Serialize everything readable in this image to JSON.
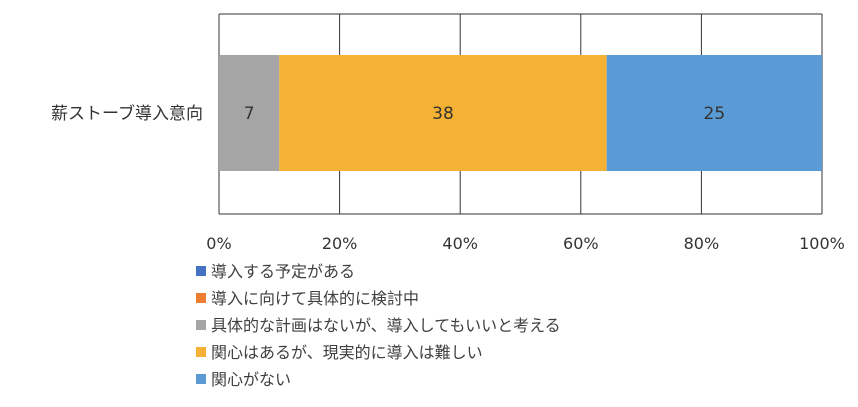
{
  "chart_data": {
    "type": "bar",
    "orientation": "horizontal",
    "stacked": true,
    "percent_stacked": true,
    "categories": [
      "薪ストーブ導入意向"
    ],
    "series": [
      {
        "name": "導入する予定がある",
        "values": [
          0
        ],
        "color": "#4472C4",
        "show_label": false
      },
      {
        "name": "導入に向けて具体的に検討中",
        "values": [
          0
        ],
        "color": "#ED7D31",
        "show_label": false
      },
      {
        "name": "具体的な計画はないが、導入してもいいと考える",
        "values": [
          7
        ],
        "color": "#A5A5A5",
        "show_label": true
      },
      {
        "name": "関心はあるが、現実的に導入は難しい",
        "values": [
          38
        ],
        "color": "#F4B133",
        "show_label": true
      },
      {
        "name": "関心がない",
        "values": [
          25
        ],
        "color": "#5B9BD5",
        "show_label": true
      }
    ],
    "x_ticks": [
      "0%",
      "20%",
      "40%",
      "60%",
      "80%",
      "100%"
    ],
    "xlim": [
      0,
      100
    ],
    "grid": true,
    "legend_position": "bottom-left"
  }
}
